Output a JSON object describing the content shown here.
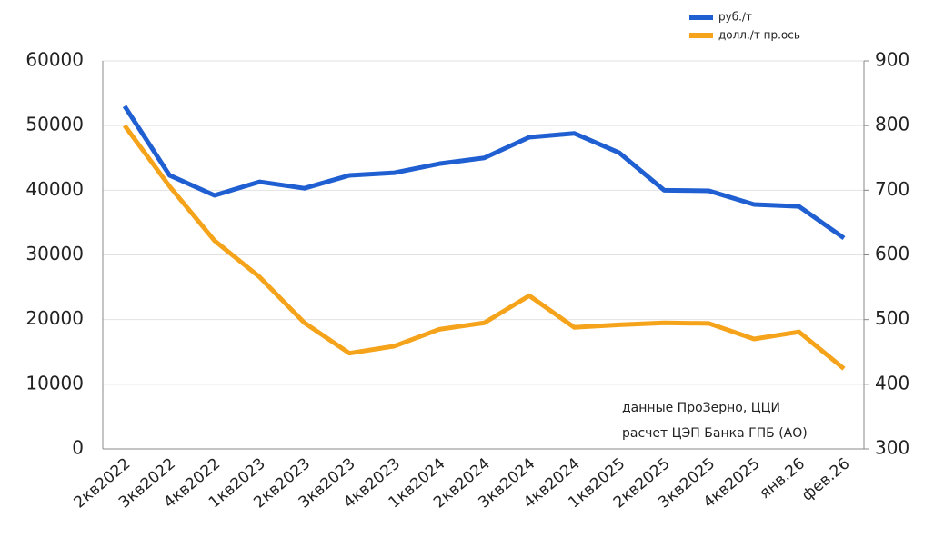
{
  "chart_data": {
    "type": "line",
    "categories": [
      "2кв2022",
      "3кв2022",
      "4кв2022",
      "1кв2023",
      "2кв2023",
      "3кв2023",
      "4кв2023",
      "1кв2024",
      "2кв2024",
      "3кв2024",
      "4кв2024",
      "1кв2025",
      "2кв2025",
      "3кв2025",
      "4кв2025",
      "янв.26",
      "фев.26"
    ],
    "series": [
      {
        "name": "руб./т",
        "color": "#1f5fd1",
        "values": [
          53000,
          42300,
          39200,
          41300,
          40300,
          42300,
          42700,
          44100,
          45000,
          48200,
          48800,
          45800,
          40000,
          39900,
          37800,
          37500,
          32600
        ]
      },
      {
        "name": "долл./т пр.ось",
        "color": "#f5a31a",
        "axis": "y2",
        "values": [
          800,
          706,
          622,
          566,
          495,
          448,
          459,
          485,
          495,
          537,
          488,
          492,
          495,
          494,
          470,
          481,
          424
        ]
      }
    ],
    "ylim": [
      0,
      60000
    ],
    "yticks": [
      0,
      10000,
      20000,
      30000,
      40000,
      50000,
      60000
    ],
    "y2lim": [
      300,
      900
    ],
    "y2ticks": [
      300,
      400,
      500,
      600,
      700,
      800,
      900
    ],
    "grid": true,
    "legend": "top-right",
    "annotations": [
      "данные ПроЗерно, ЦЦИ",
      "расчет ЦЭП Банка ГПБ (АО)"
    ]
  }
}
